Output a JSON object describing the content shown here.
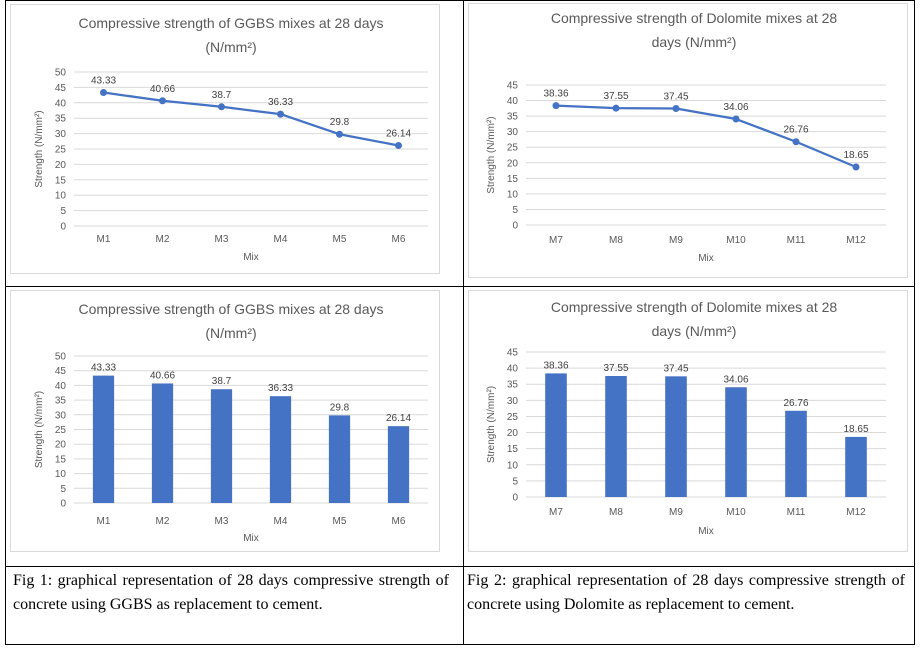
{
  "chart_data": [
    {
      "type": "line",
      "title": "Compressive strength of GGBS mixes at 28 days",
      "subtitle": "(N/mm²)",
      "xlabel": "Mix",
      "ylabel": "Strength (N/mm²)",
      "categories": [
        "M1",
        "M2",
        "M3",
        "M4",
        "M5",
        "M6"
      ],
      "values": [
        43.33,
        40.66,
        38.7,
        36.33,
        29.8,
        26.14
      ],
      "data_labels": [
        "43.33",
        "40.66",
        "38.7",
        "36.33",
        "29.8",
        "26.14"
      ],
      "ylim": [
        0,
        50
      ],
      "yticks": [
        0,
        5,
        10,
        15,
        20,
        25,
        30,
        35,
        40,
        45,
        50
      ],
      "color": "#4472C4",
      "grid": true
    },
    {
      "type": "line",
      "title": "Compressive strength of Dolomite mixes at 28",
      "subtitle": "days  (N/mm²)",
      "xlabel": "Mix",
      "ylabel": "Strength (N/mm²)",
      "categories": [
        "M7",
        "M8",
        "M9",
        "M10",
        "M11",
        "M12"
      ],
      "values": [
        38.36,
        37.55,
        37.45,
        34.06,
        26.76,
        18.65
      ],
      "data_labels": [
        "38.36",
        "37.55",
        "37.45",
        "34.06",
        "26.76",
        "18.65"
      ],
      "ylim": [
        0,
        45
      ],
      "yticks": [
        0,
        5,
        10,
        15,
        20,
        25,
        30,
        35,
        40,
        45
      ],
      "color": "#4472C4",
      "grid": true
    },
    {
      "type": "bar",
      "title": "Compressive strength of GGBS mixes at 28 days",
      "subtitle": "(N/mm²)",
      "xlabel": "Mix",
      "ylabel": "Strength (N/mm²)",
      "categories": [
        "M1",
        "M2",
        "M3",
        "M4",
        "M5",
        "M6"
      ],
      "values": [
        43.33,
        40.66,
        38.7,
        36.33,
        29.8,
        26.14
      ],
      "data_labels": [
        "43.33",
        "40.66",
        "38.7",
        "36.33",
        "29.8",
        "26.14"
      ],
      "ylim": [
        0,
        50
      ],
      "yticks": [
        0,
        5,
        10,
        15,
        20,
        25,
        30,
        35,
        40,
        45,
        50
      ],
      "color": "#4472C4",
      "grid": true
    },
    {
      "type": "bar",
      "title": "Compressive strength of Dolomite mixes at 28",
      "subtitle": "days  (N/mm²)",
      "xlabel": "Mix",
      "ylabel": "Strength (N/mm²)",
      "categories": [
        "M7",
        "M8",
        "M9",
        "M10",
        "M11",
        "M12"
      ],
      "values": [
        38.36,
        37.55,
        37.45,
        34.06,
        26.76,
        18.65
      ],
      "data_labels": [
        "38.36",
        "37.55",
        "37.45",
        "34.06",
        "26.76",
        "18.65"
      ],
      "ylim": [
        0,
        45
      ],
      "yticks": [
        0,
        5,
        10,
        15,
        20,
        25,
        30,
        35,
        40,
        45
      ],
      "color": "#4472C4",
      "grid": true
    }
  ],
  "captions": {
    "fig1": "Fig 1: graphical representation of 28 days compressive strength of concrete using GGBS as replacement to cement.",
    "fig2": "Fig 2: graphical representation of 28 days compressive strength of concrete using Dolomite as replacement to cement."
  }
}
